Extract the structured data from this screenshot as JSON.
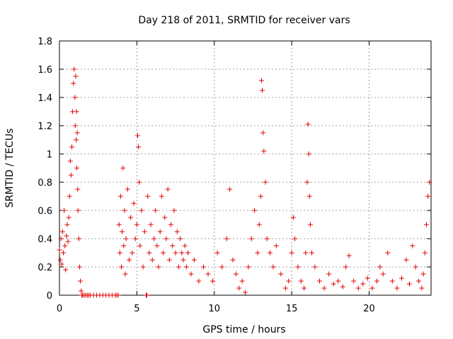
{
  "chart_data": {
    "type": "scatter",
    "title": "Day 218 of 2011, SRMTID for receiver vars",
    "xlabel": "GPS time / hours",
    "ylabel": "SRMTID / TECUs",
    "xlim": [
      0,
      24
    ],
    "ylim": [
      0,
      1.8
    ],
    "xticks": [
      0,
      5,
      10,
      15,
      20
    ],
    "xtick_labels": [
      "0",
      "5",
      "10",
      "15",
      "20"
    ],
    "yticks": [
      0,
      0.2,
      0.4,
      0.6,
      0.8,
      1,
      1.2,
      1.4,
      1.6,
      1.8
    ],
    "ytick_labels": [
      "0",
      "0.2",
      "0.4",
      "0.6",
      "0.8",
      "1",
      "1.2",
      "1.4",
      "1.6",
      "1.8"
    ],
    "grid": true,
    "marker": "+",
    "series": [
      {
        "name": "SRMTID",
        "color": "#e00000",
        "x": [
          0.0,
          0.05,
          0.1,
          0.15,
          0.2,
          0.25,
          0.3,
          0.35,
          0.4,
          0.45,
          0.5,
          0.55,
          0.6,
          0.65,
          0.7,
          0.75,
          0.8,
          0.85,
          0.9,
          0.95,
          1.0,
          1.02,
          1.05,
          1.08,
          1.1,
          1.12,
          1.15,
          1.18,
          1.2,
          1.25,
          1.3,
          1.35,
          1.4,
          1.45,
          1.5,
          1.6,
          1.7,
          1.8,
          1.9,
          2.0,
          2.2,
          2.4,
          2.6,
          2.8,
          3.0,
          3.2,
          3.4,
          3.6,
          3.7,
          3.8,
          3.85,
          3.9,
          3.95,
          4.0,
          4.05,
          4.1,
          4.15,
          4.2,
          4.25,
          4.3,
          4.4,
          4.5,
          4.6,
          4.7,
          4.8,
          4.9,
          5.0,
          5.05,
          5.1,
          5.15,
          5.2,
          5.3,
          5.4,
          5.5,
          5.6,
          5.65,
          5.7,
          5.8,
          5.9,
          6.0,
          6.1,
          6.2,
          6.3,
          6.4,
          6.5,
          6.6,
          6.7,
          6.8,
          6.9,
          7.0,
          7.1,
          7.2,
          7.3,
          7.4,
          7.5,
          7.6,
          7.7,
          7.8,
          7.9,
          8.0,
          8.1,
          8.2,
          8.3,
          8.5,
          8.7,
          9.0,
          9.3,
          9.6,
          9.9,
          10.2,
          10.5,
          10.8,
          11.0,
          11.2,
          11.4,
          11.6,
          11.8,
          12.0,
          12.2,
          12.4,
          12.6,
          12.8,
          12.9,
          13.0,
          13.05,
          13.1,
          13.15,
          13.2,
          13.3,
          13.4,
          13.6,
          13.8,
          14.0,
          14.3,
          14.6,
          14.8,
          15.0,
          15.1,
          15.2,
          15.4,
          15.6,
          15.8,
          15.9,
          16.0,
          16.05,
          16.1,
          16.15,
          16.2,
          16.3,
          16.5,
          16.8,
          17.1,
          17.4,
          17.7,
          18.0,
          18.3,
          18.5,
          18.7,
          19.0,
          19.3,
          19.6,
          19.9,
          20.2,
          20.5,
          20.7,
          20.9,
          21.2,
          21.5,
          21.8,
          22.1,
          22.4,
          22.6,
          22.8,
          23.0,
          23.2,
          23.4,
          23.5,
          23.6,
          23.7,
          23.8,
          23.9
        ],
        "y": [
          0.32,
          0.25,
          0.4,
          0.22,
          0.45,
          0.3,
          0.6,
          0.35,
          0.18,
          0.42,
          0.5,
          0.38,
          0.55,
          0.7,
          0.95,
          0.85,
          1.05,
          1.3,
          1.5,
          1.6,
          1.4,
          1.2,
          1.55,
          1.1,
          1.3,
          0.9,
          1.15,
          0.75,
          0.6,
          0.4,
          0.2,
          0.1,
          0.03,
          0.0,
          0.0,
          0.0,
          0.0,
          0.0,
          0.0,
          0.0,
          0.0,
          0.0,
          0.0,
          0.0,
          0.0,
          0.0,
          0.0,
          0.0,
          0.0,
          0.0,
          0.5,
          0.3,
          0.7,
          0.2,
          0.45,
          0.9,
          0.35,
          0.6,
          0.15,
          0.4,
          0.75,
          0.25,
          0.55,
          0.3,
          0.65,
          0.4,
          0.5,
          1.13,
          1.05,
          0.8,
          0.35,
          0.6,
          0.2,
          0.45,
          0.0,
          0.0,
          0.7,
          0.3,
          0.5,
          0.25,
          0.4,
          0.6,
          0.35,
          0.2,
          0.45,
          0.7,
          0.3,
          0.55,
          0.4,
          0.75,
          0.25,
          0.5,
          0.35,
          0.6,
          0.3,
          0.45,
          0.2,
          0.4,
          0.3,
          0.25,
          0.35,
          0.2,
          0.3,
          0.15,
          0.25,
          0.1,
          0.2,
          0.15,
          0.1,
          0.3,
          0.2,
          0.4,
          0.75,
          0.25,
          0.15,
          0.05,
          0.1,
          0.02,
          0.2,
          0.4,
          0.6,
          0.3,
          0.5,
          0.7,
          1.52,
          1.45,
          1.15,
          1.02,
          0.8,
          0.4,
          0.3,
          0.2,
          0.35,
          0.15,
          0.05,
          0.1,
          0.3,
          0.55,
          0.4,
          0.2,
          0.1,
          0.05,
          0.3,
          0.8,
          1.21,
          1.0,
          0.7,
          0.5,
          0.3,
          0.2,
          0.1,
          0.05,
          0.15,
          0.08,
          0.1,
          0.06,
          0.2,
          0.28,
          0.1,
          0.05,
          0.08,
          0.12,
          0.05,
          0.1,
          0.2,
          0.15,
          0.3,
          0.1,
          0.05,
          0.12,
          0.25,
          0.08,
          0.35,
          0.2,
          0.1,
          0.05,
          0.15,
          0.3,
          0.5,
          0.7,
          0.8
        ]
      }
    ]
  }
}
